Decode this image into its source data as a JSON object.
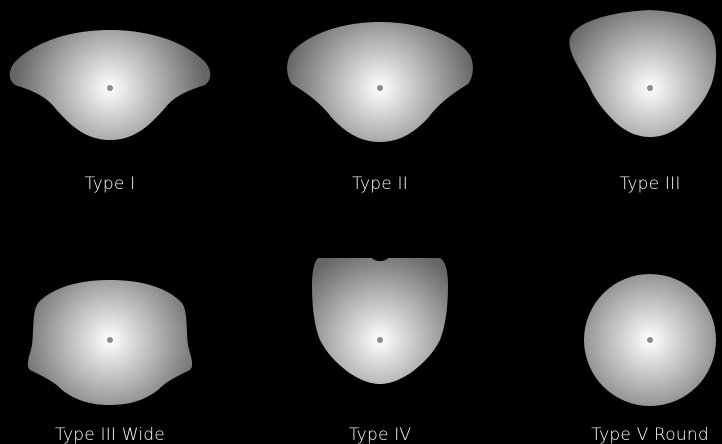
{
  "diagram": {
    "background_color": "#000000",
    "gradient": {
      "center_color": "#ffffff",
      "edge_color": "#666666"
    },
    "center_dot_color": "#8c8c8c",
    "label_color": "#ffffff",
    "patterns": [
      {
        "id": "type-1",
        "label": "Type I",
        "shape": "type-i-wing"
      },
      {
        "id": "type-2",
        "label": "Type II",
        "shape": "type-ii-wing"
      },
      {
        "id": "type-3",
        "label": "Type III",
        "shape": "type-iii-cup"
      },
      {
        "id": "type-3-wide",
        "label": "Type III Wide",
        "shape": "type-iii-wide-cup"
      },
      {
        "id": "type-4",
        "label": "Type IV",
        "shape": "type-iv-forward"
      },
      {
        "id": "type-5-round",
        "label": "Type V Round",
        "shape": "circle"
      }
    ]
  }
}
